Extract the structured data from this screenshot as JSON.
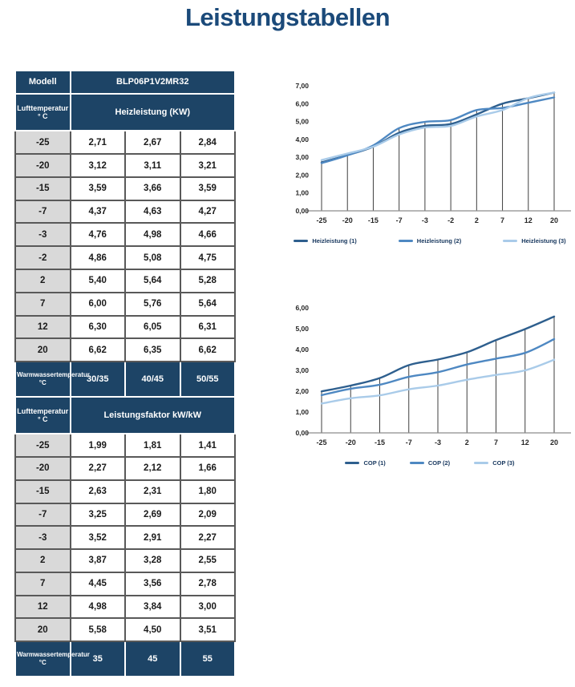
{
  "page": {
    "title": "Leistungstabellen"
  },
  "colors": {
    "navy_header": "#1d4466",
    "title": "#1b4a7a",
    "gray_cell": "#d9d9d9",
    "cell_border": "#595959",
    "outer_border": "#3f3f3f",
    "axis": "#8c8c8c",
    "drop_line": "#3f3f3f",
    "series1": "#2e5f8e",
    "series2": "#4e88c2",
    "series3": "#a9cbe9",
    "legend_text": "#17375e"
  },
  "table1": {
    "header_row1": {
      "col1": "Modell",
      "col2": "BLP06P1V2MR32"
    },
    "header_row2": {
      "col1": "Lufttemperatur ° C",
      "col2": "Heizleistung (KW)"
    },
    "rows": [
      [
        "-25",
        "2,71",
        "2,67",
        "2,84"
      ],
      [
        "-20",
        "3,12",
        "3,11",
        "3,21"
      ],
      [
        "-15",
        "3,59",
        "3,66",
        "3,59"
      ],
      [
        "-7",
        "4,37",
        "4,63",
        "4,27"
      ],
      [
        "-3",
        "4,76",
        "4,98",
        "4,66"
      ],
      [
        "-2",
        "4,86",
        "5,08",
        "4,75"
      ],
      [
        "2",
        "5,40",
        "5,64",
        "5,28"
      ],
      [
        "7",
        "6,00",
        "5,76",
        "5,64"
      ],
      [
        "12",
        "6,30",
        "6,05",
        "6,31"
      ],
      [
        "20",
        "6,62",
        "6,35",
        "6,62"
      ]
    ]
  },
  "table2": {
    "header_row1": {
      "col1": "Warmwassertemperatur °C",
      "cols": [
        "30/35",
        "40/45",
        "50/55"
      ]
    },
    "header_row2": {
      "col1": "Lufttemperatur ° C",
      "col2": "Leistungsfaktor kW/kW"
    },
    "rows": [
      [
        "-25",
        "1,99",
        "1,81",
        "1,41"
      ],
      [
        "-20",
        "2,27",
        "2,12",
        "1,66"
      ],
      [
        "-15",
        "2,63",
        "2,31",
        "1,80"
      ],
      [
        "-7",
        "3,25",
        "2,69",
        "2,09"
      ],
      [
        "-3",
        "3,52",
        "2,91",
        "2,27"
      ],
      [
        "2",
        "3,87",
        "3,28",
        "2,55"
      ],
      [
        "7",
        "4,45",
        "3,56",
        "2,78"
      ],
      [
        "12",
        "4,98",
        "3,84",
        "3,00"
      ],
      [
        "20",
        "5,58",
        "4,50",
        "3,51"
      ]
    ],
    "footer_row": {
      "col1": "Warmwassertemperatur °C",
      "cols": [
        "35",
        "45",
        "55"
      ]
    }
  },
  "chart_data": [
    {
      "type": "line",
      "title": "",
      "x": [
        "-25",
        "-20",
        "-15",
        "-7",
        "-3",
        "-2",
        "2",
        "7",
        "12",
        "20"
      ],
      "series": [
        {
          "name": "Heizleistung (1)",
          "color": "#2e5f8e",
          "values": [
            2.71,
            3.12,
            3.59,
            4.37,
            4.76,
            4.86,
            5.4,
            6.0,
            6.3,
            6.62
          ]
        },
        {
          "name": "Heizleistung (2)",
          "color": "#4e88c2",
          "values": [
            2.67,
            3.11,
            3.66,
            4.63,
            4.98,
            5.08,
            5.64,
            5.76,
            6.05,
            6.35
          ]
        },
        {
          "name": "Heizleistung (3)",
          "color": "#a9cbe9",
          "values": [
            2.84,
            3.21,
            3.59,
            4.27,
            4.66,
            4.75,
            5.28,
            5.64,
            6.31,
            6.62
          ]
        }
      ],
      "ylim": [
        0,
        7
      ],
      "yticks": [
        "0,00",
        "1,00",
        "2,00",
        "3,00",
        "4,00",
        "5,00",
        "6,00",
        "7,00"
      ],
      "grid": false,
      "drop_lines": true,
      "legend_position": "bottom",
      "smooth": true
    },
    {
      "type": "line",
      "title": "",
      "x": [
        "-25",
        "-20",
        "-15",
        "-7",
        "-3",
        "2",
        "7",
        "12",
        "20"
      ],
      "series": [
        {
          "name": "COP (1)",
          "color": "#2e5f8e",
          "values": [
            1.99,
            2.27,
            2.63,
            3.25,
            3.52,
            3.87,
            4.45,
            4.98,
            5.58
          ]
        },
        {
          "name": "COP (2)",
          "color": "#4e88c2",
          "values": [
            1.81,
            2.12,
            2.31,
            2.69,
            2.91,
            3.28,
            3.56,
            3.84,
            4.5
          ]
        },
        {
          "name": "COP (3)",
          "color": "#a9cbe9",
          "values": [
            1.41,
            1.66,
            1.8,
            2.09,
            2.27,
            2.55,
            2.78,
            3.0,
            3.51
          ]
        }
      ],
      "ylim": [
        0,
        6
      ],
      "yticks": [
        "0,00",
        "1,00",
        "2,00",
        "3,00",
        "4,00",
        "5,00",
        "6,00"
      ],
      "grid": false,
      "drop_lines": true,
      "legend_position": "bottom",
      "smooth": true
    }
  ]
}
